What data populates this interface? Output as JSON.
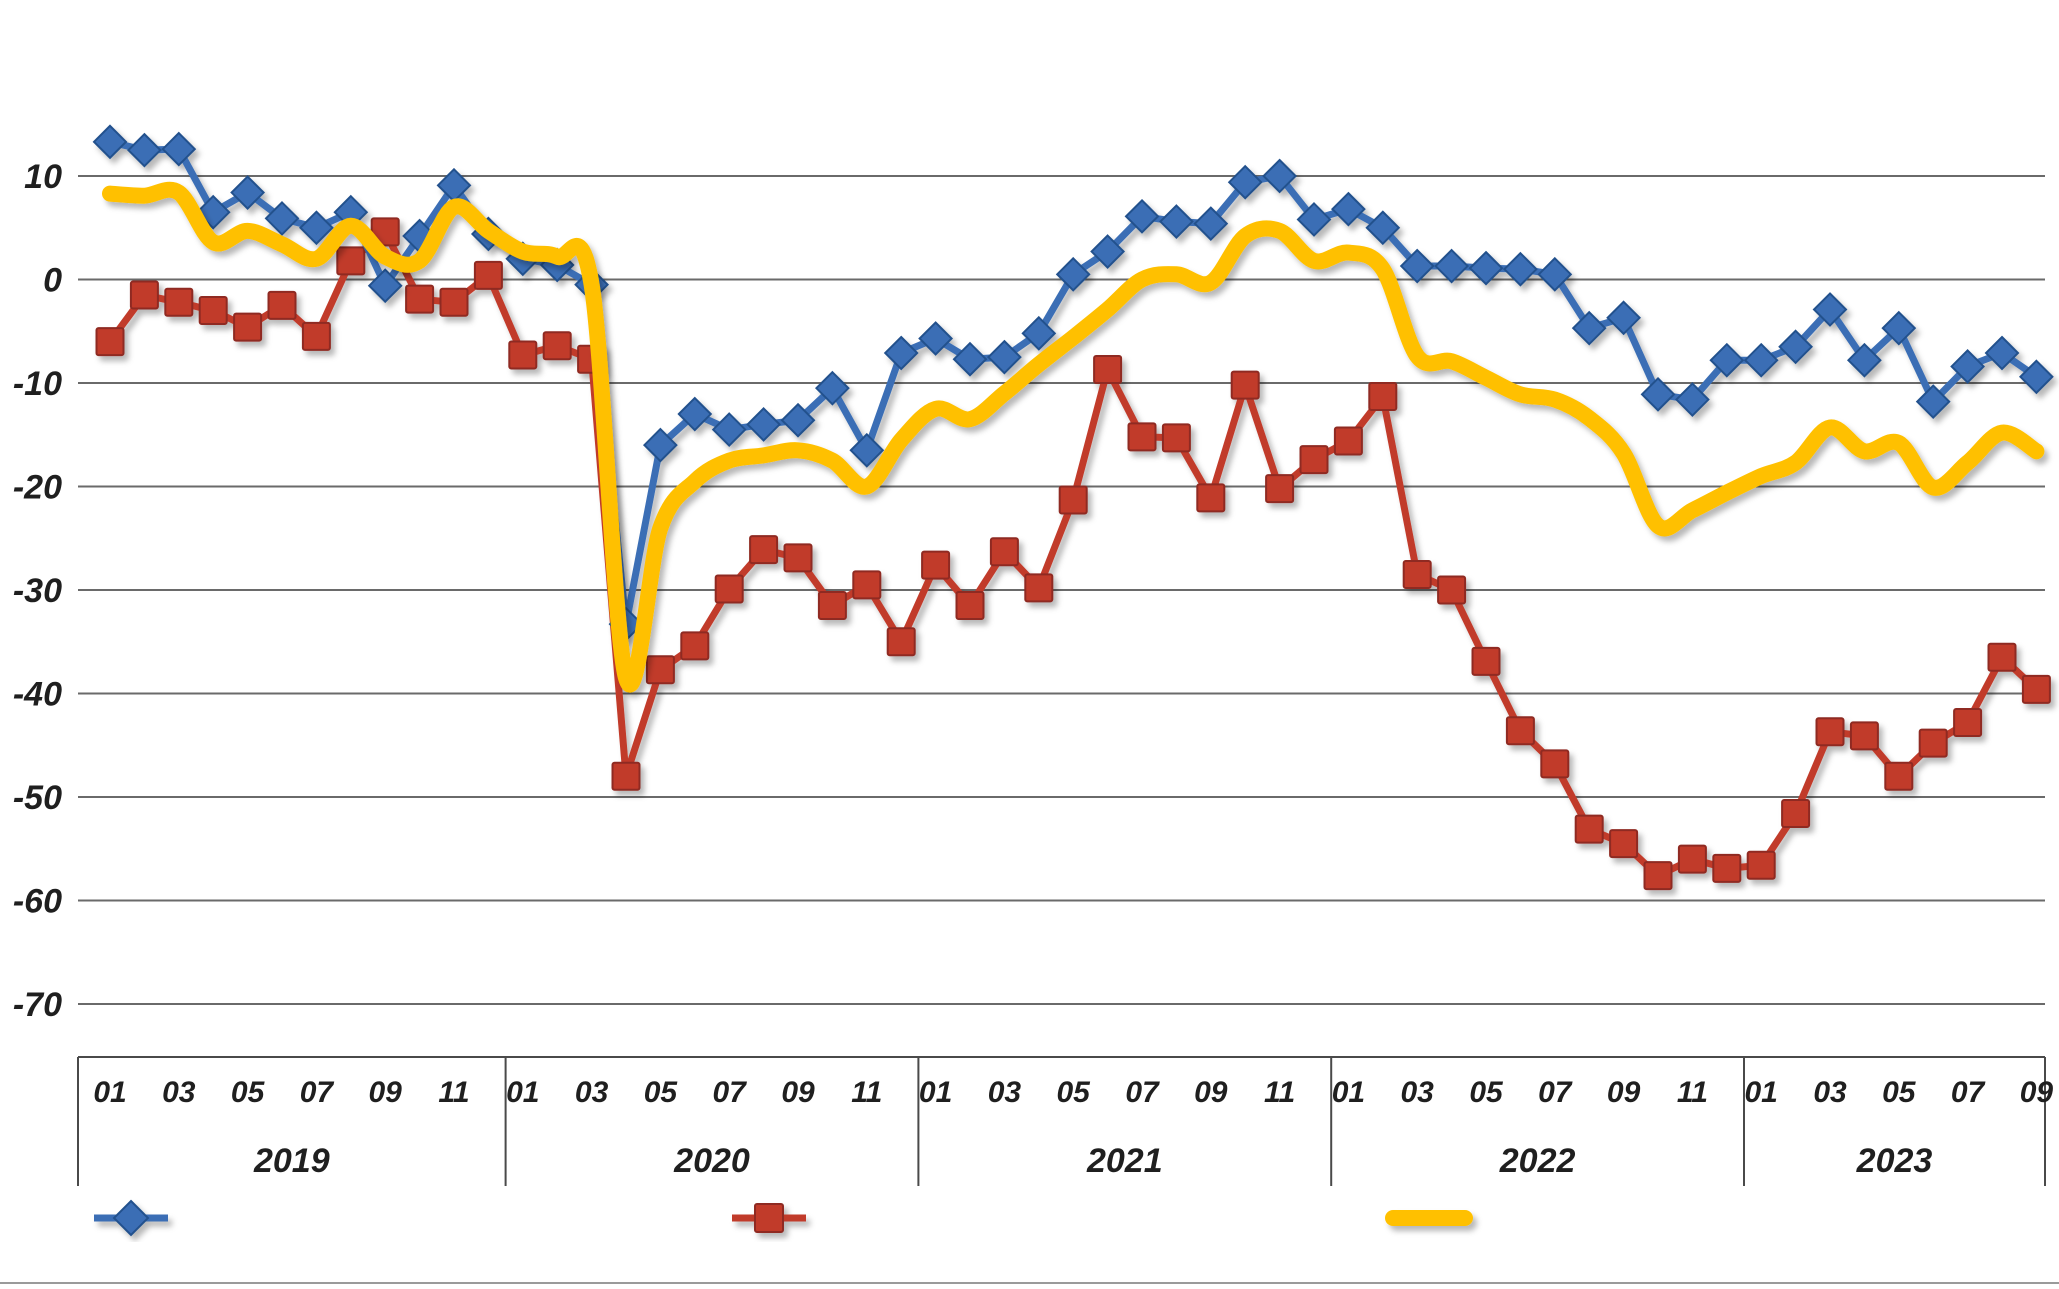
{
  "chart_data": {
    "type": "line",
    "title": "",
    "x": {
      "years": [
        {
          "label": "2019",
          "month_labels": [
            "01",
            "03",
            "05",
            "07",
            "09",
            "11"
          ],
          "n_months": 12
        },
        {
          "label": "2020",
          "month_labels": [
            "01",
            "03",
            "05",
            "07",
            "09",
            "11"
          ],
          "n_months": 12
        },
        {
          "label": "2021",
          "month_labels": [
            "01",
            "03",
            "05",
            "07",
            "09",
            "11"
          ],
          "n_months": 12
        },
        {
          "label": "2022",
          "month_labels": [
            "01",
            "03",
            "05",
            "07",
            "09",
            "11"
          ],
          "n_months": 12
        },
        {
          "label": "2023",
          "month_labels": [
            "01",
            "03",
            "05",
            "07",
            "09"
          ],
          "n_months": 9
        }
      ]
    },
    "y_axis": {
      "tick_labels": [
        "10",
        "0",
        "-10",
        "-20",
        "-30",
        "-40",
        "-50",
        "-60",
        "-70"
      ],
      "tick_values": [
        10,
        0,
        -10,
        -20,
        -30,
        -40,
        -50,
        -60,
        -70
      ],
      "grid": true
    },
    "series": [
      {
        "name": "red-square-series",
        "marker": "square",
        "color": "#C13A2B",
        "marker_edge_color": "#8F2A20",
        "values": [
          -6.0,
          -1.5,
          -2.2,
          -3.0,
          -4.6,
          -2.5,
          -5.5,
          1.8,
          4.6,
          -1.9,
          -2.2,
          0.4,
          -7.3,
          -6.4,
          -7.7,
          -48.0,
          -37.7,
          -35.4,
          -29.9,
          -26.1,
          -26.9,
          -31.5,
          -29.5,
          -35.0,
          -27.6,
          -31.5,
          -26.3,
          -29.8,
          -21.3,
          -8.7,
          -15.2,
          -15.3,
          -21.1,
          -10.2,
          -20.2,
          -17.4,
          -15.6,
          -11.3,
          -28.5,
          -30.0,
          -36.9,
          -43.6,
          -46.8,
          -53.1,
          -54.5,
          -57.6,
          -56.0,
          -56.9,
          -56.6,
          -51.6,
          -43.7,
          -44.1,
          -48.0,
          -44.8,
          -42.8,
          -36.5,
          -39.6
        ]
      },
      {
        "name": "blue-diamond-series",
        "marker": "diamond",
        "color": "#3A6EB5",
        "marker_edge_color": "#24518D",
        "values": [
          13.3,
          12.5,
          12.6,
          6.5,
          8.4,
          5.9,
          5.0,
          6.5,
          -0.6,
          4.2,
          9.1,
          4.4,
          2.0,
          1.4,
          -0.5,
          -33.3,
          -16.0,
          -13.0,
          -14.5,
          -14.0,
          -13.6,
          -10.5,
          -16.5,
          -7.1,
          -5.7,
          -7.7,
          -7.5,
          -5.2,
          0.5,
          2.7,
          6.1,
          5.6,
          5.4,
          9.4,
          10.0,
          5.8,
          6.8,
          5.0,
          1.3,
          1.3,
          1.1,
          1.0,
          0.5,
          -4.7,
          -3.7,
          -11.1,
          -11.6,
          -7.8,
          -7.8,
          -6.5,
          -2.9,
          -7.8,
          -4.7,
          -11.8,
          -8.4,
          -7.1,
          -9.4
        ]
      },
      {
        "name": "yellow-smooth-series",
        "marker": "none",
        "color": "#FFC000",
        "marker_edge_color": "#E0A800",
        "values": [
          8.3,
          8.1,
          8.4,
          3.6,
          4.7,
          3.4,
          2.0,
          5.2,
          2.2,
          1.8,
          7.0,
          4.7,
          2.7,
          2.2,
          -0.5,
          -38.5,
          -24.0,
          -19.5,
          -17.5,
          -17.0,
          -16.5,
          -17.5,
          -20.0,
          -15.5,
          -12.5,
          -13.5,
          -11.0,
          -8.2,
          -5.6,
          -2.9,
          0.0,
          0.5,
          -0.3,
          4.2,
          4.7,
          1.8,
          2.6,
          1.0,
          -7.4,
          -7.9,
          -9.5,
          -11.1,
          -11.6,
          -13.4,
          -16.8,
          -23.8,
          -22.3,
          -20.6,
          -19.0,
          -17.7,
          -14.3,
          -16.6,
          -15.8,
          -20.1,
          -17.7,
          -14.8,
          -16.6
        ]
      }
    ],
    "legend": {
      "position": "bottom",
      "entries": [
        {
          "series": "blue-diamond-series",
          "label": "",
          "marker": "diamond"
        },
        {
          "series": "red-square-series",
          "label": "",
          "marker": "square"
        },
        {
          "series": "yellow-smooth-series",
          "label": "",
          "marker": "thick-line"
        }
      ]
    }
  }
}
